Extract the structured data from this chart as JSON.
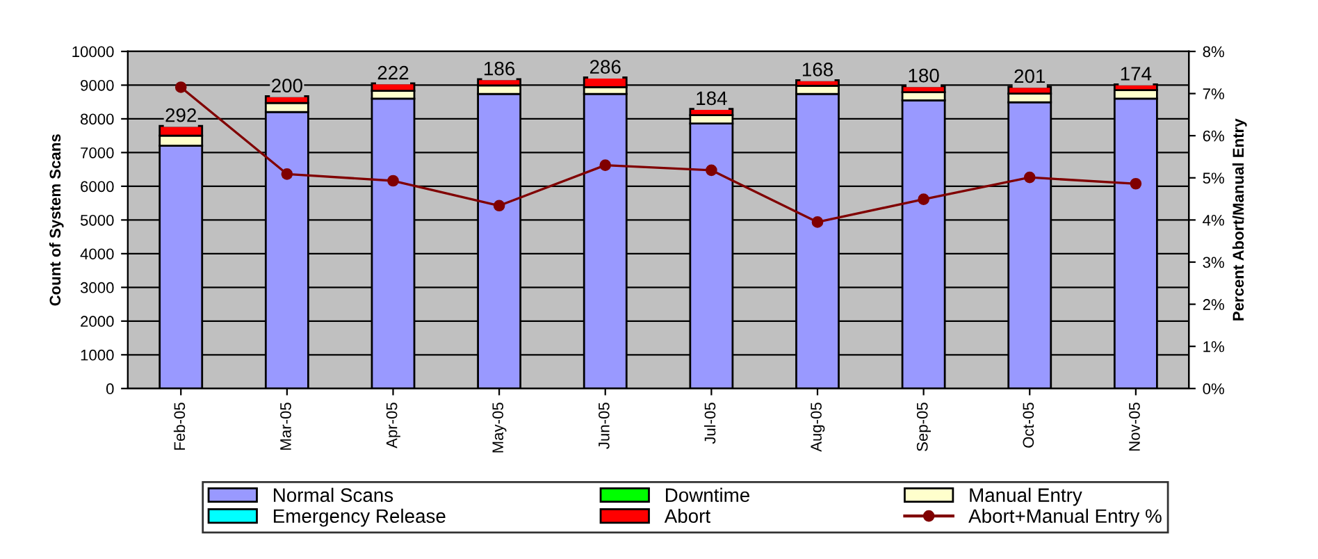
{
  "chart_data": {
    "type": "bar",
    "stacked": true,
    "ylabel": "Count of System Scans",
    "y2label": "Percent Abort/Manual Entry",
    "categories": [
      "Feb-05",
      "Mar-05",
      "Apr-05",
      "May-05",
      "Jun-05",
      "Jul-05",
      "Aug-05",
      "Sep-05",
      "Oct-05",
      "Nov-05"
    ],
    "series": [
      {
        "name": "Normal Scans",
        "color": "#9999ff",
        "values": [
          7200,
          8200,
          8600,
          8740,
          8740,
          7860,
          8740,
          8550,
          8490,
          8600
        ]
      },
      {
        "name": "Emergency Release",
        "color": "#00ffff",
        "values": [
          null,
          null,
          null,
          null,
          null,
          null,
          null,
          null,
          null,
          null
        ]
      },
      {
        "name": "Downtime",
        "color": "#00ff00",
        "values": [
          null,
          null,
          null,
          null,
          null,
          null,
          null,
          null,
          null,
          null
        ]
      },
      {
        "name": "Manual Entry",
        "color": "#ffffcc",
        "values": [
          300,
          270,
          230,
          250,
          200,
          250,
          240,
          240,
          260,
          250
        ]
      },
      {
        "name": "Abort",
        "color": "#ff0000",
        "values": [
          292,
          200,
          222,
          186,
          286,
          184,
          168,
          180,
          201,
          174
        ],
        "value_labels": [
          "292",
          "200",
          "222",
          "186",
          "286",
          "184",
          "168",
          "180",
          "201",
          "174"
        ]
      },
      {
        "name": "Abort+Manual Entry %",
        "type": "line",
        "axis": "y2",
        "color": "#800000",
        "marker": "circle",
        "values": [
          7.15,
          5.09,
          4.93,
          4.34,
          5.3,
          5.18,
          3.95,
          4.49,
          5.01,
          4.86
        ]
      }
    ],
    "ylim": [
      0,
      10000
    ],
    "yticks": [
      0,
      1000,
      2000,
      3000,
      4000,
      5000,
      6000,
      7000,
      8000,
      9000,
      10000
    ],
    "y2lim": [
      0,
      8
    ],
    "y2ticks": [
      {
        "value": 0,
        "label": "0%"
      },
      {
        "value": 1,
        "label": "1%"
      },
      {
        "value": 2,
        "label": "2%"
      },
      {
        "value": 3,
        "label": "3%"
      },
      {
        "value": 4,
        "label": "4%"
      },
      {
        "value": 5,
        "label": "5%"
      },
      {
        "value": 6,
        "label": "6%"
      },
      {
        "value": 7,
        "label": "7%"
      },
      {
        "value": 8,
        "label": "8%"
      }
    ],
    "grid": "y",
    "legend": "bottom"
  }
}
